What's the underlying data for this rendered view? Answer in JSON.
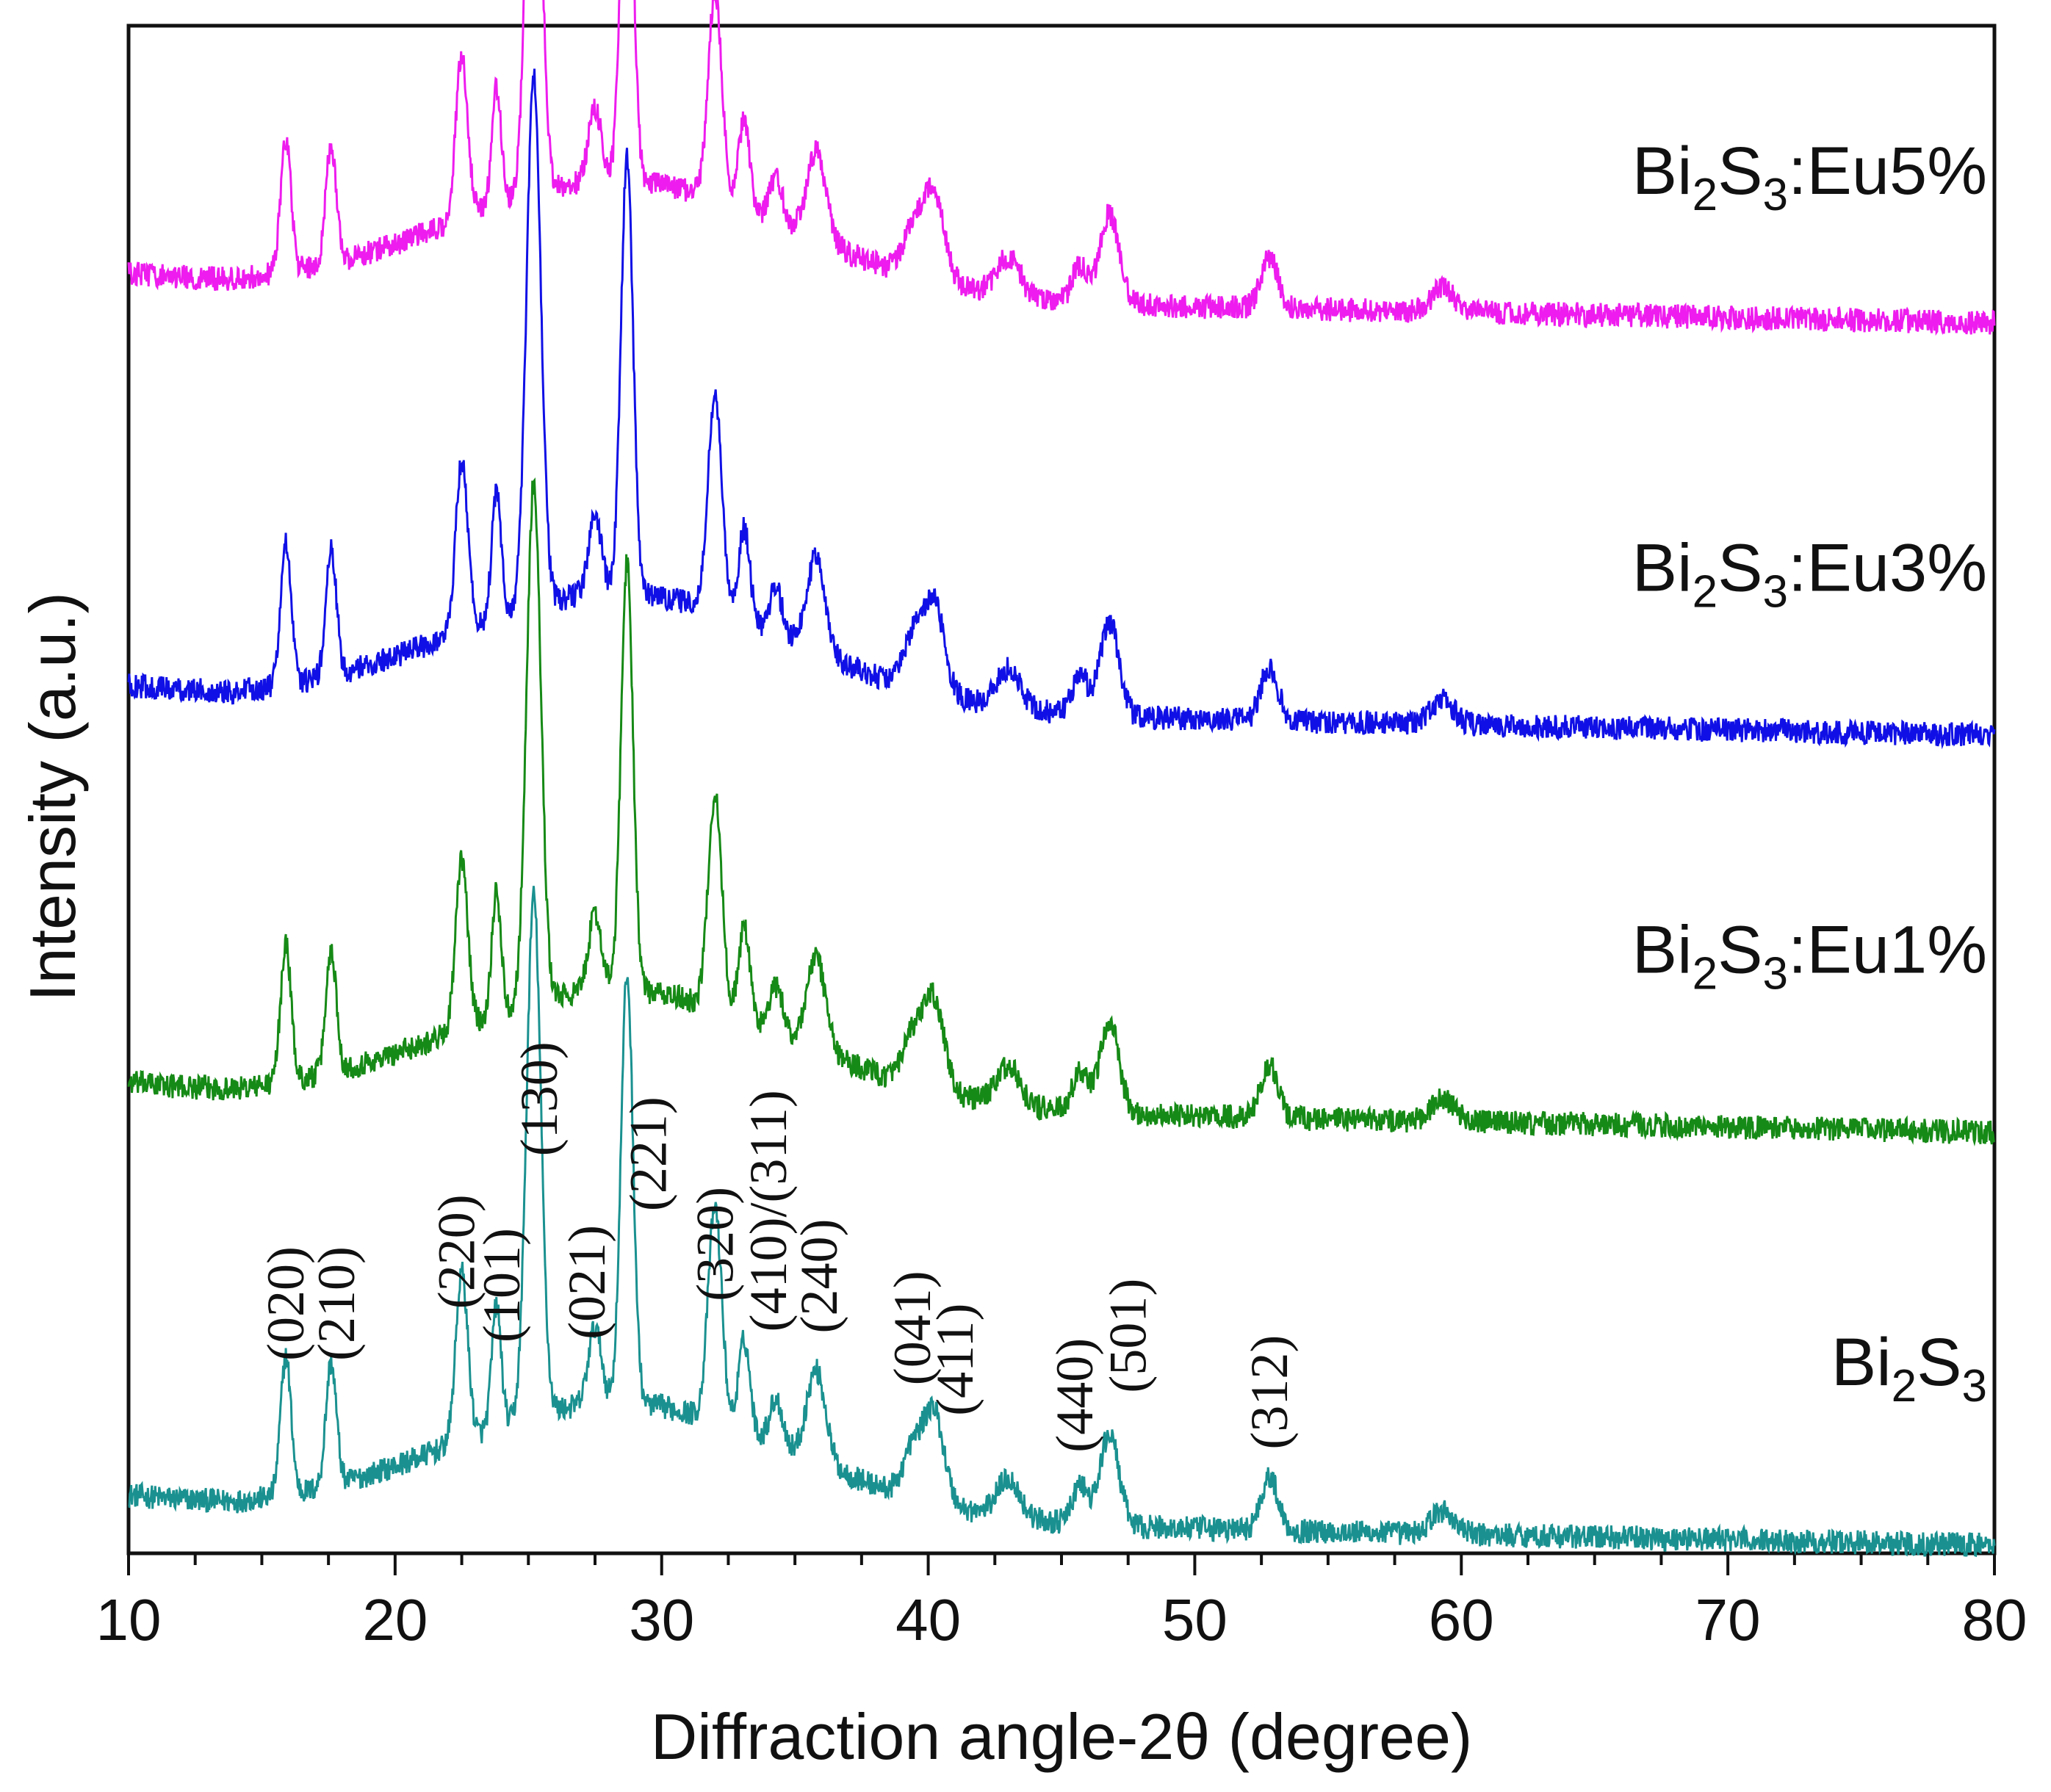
{
  "chart_data": {
    "type": "line",
    "title": "",
    "xlabel": "Diffraction angle-2θ (degree)",
    "ylabel": "Intensity (a.u.)",
    "xlim": [
      10,
      80
    ],
    "ylim": [
      0,
      100
    ],
    "xticks": [
      10,
      20,
      30,
      40,
      50,
      60,
      70,
      80
    ],
    "grid": false,
    "legend": "inline labels on right",
    "peaks": [
      {
        "pos": 15.9,
        "amp": 9,
        "w": 0.28
      },
      {
        "pos": 17.6,
        "amp": 8,
        "w": 0.28
      },
      {
        "pos": 22.5,
        "amp": 11,
        "w": 0.32
      },
      {
        "pos": 23.8,
        "amp": 8,
        "w": 0.25
      },
      {
        "pos": 25.2,
        "amp": 34,
        "w": 0.38
      },
      {
        "pos": 27.5,
        "amp": 5,
        "w": 0.35
      },
      {
        "pos": 28.7,
        "amp": 28,
        "w": 0.32
      },
      {
        "pos": 32.0,
        "amp": 14,
        "w": 0.36
      },
      {
        "pos": 33.1,
        "amp": 6,
        "w": 0.3
      },
      {
        "pos": 34.3,
        "amp": 3,
        "w": 0.35
      },
      {
        "pos": 35.8,
        "amp": 6,
        "w": 0.5
      },
      {
        "pos": 39.4,
        "amp": 3,
        "w": 0.5
      },
      {
        "pos": 40.2,
        "amp": 6,
        "w": 0.55
      },
      {
        "pos": 43.0,
        "amp": 2.5,
        "w": 0.6
      },
      {
        "pos": 45.7,
        "amp": 2.5,
        "w": 0.4
      },
      {
        "pos": 46.8,
        "amp": 6,
        "w": 0.5
      },
      {
        "pos": 52.8,
        "amp": 3.5,
        "w": 0.45
      },
      {
        "pos": 59.3,
        "amp": 1.5,
        "w": 0.6
      }
    ],
    "series": [
      {
        "name": "Bi2S3",
        "label_main": "Bi",
        "sub1": "2",
        "mid": "S",
        "sub2": "3",
        "suffix": "",
        "color": "#1a9190",
        "offset": 0,
        "scale": 1.0,
        "label_y": 11
      },
      {
        "name": "Bi2S3:Eu1%",
        "label_main": "Bi",
        "sub1": "2",
        "mid": "S",
        "sub2": "3",
        "suffix": ":Eu1%",
        "color": "#168a16",
        "offset": 27,
        "scale": 1.0,
        "label_y": 38
      },
      {
        "name": "Bi2S3:Eu3%",
        "label_main": "Bi",
        "sub1": "2",
        "mid": "S",
        "sub2": "3",
        "suffix": ":Eu3%",
        "color": "#1010e6",
        "offset": 53,
        "scale": 1.02,
        "label_y": 63
      },
      {
        "name": "Bi2S3:Eu5%",
        "label_main": "Bi",
        "sub1": "2",
        "mid": "S",
        "sub2": "3",
        "suffix": ":Eu5%",
        "color": "#ee1cee",
        "offset": 80,
        "scale": 0.97,
        "label_y": 89
      }
    ],
    "annotations": [
      {
        "text": "(020)",
        "x": 15.9
      },
      {
        "text": "(210)",
        "x": 17.8
      },
      {
        "text": "(220)",
        "x": 22.3
      },
      {
        "text": "(101)",
        "x": 24.0
      },
      {
        "text": "(130)",
        "x": 25.4
      },
      {
        "text": "(021)",
        "x": 27.2
      },
      {
        "text": "(221)",
        "x": 29.5
      },
      {
        "text": "(320)",
        "x": 32.0
      },
      {
        "text": "(410)/(311)",
        "x": 34.0
      },
      {
        "text": "(240)",
        "x": 35.9
      },
      {
        "text": "(041)",
        "x": 39.4
      },
      {
        "text": "(411)",
        "x": 41.0
      },
      {
        "text": "(440)",
        "x": 45.5
      },
      {
        "text": "(501)",
        "x": 47.5
      },
      {
        "text": "(312)",
        "x": 52.8
      }
    ]
  }
}
